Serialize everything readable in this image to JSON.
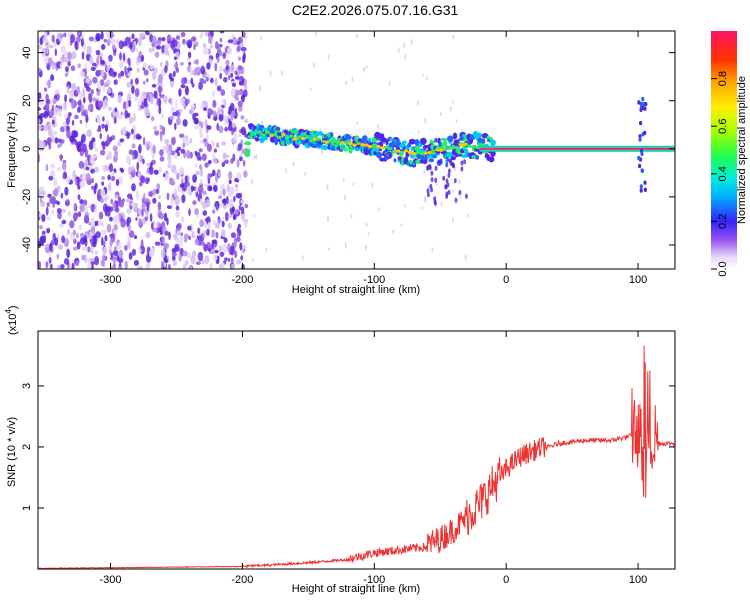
{
  "title": "C2E2.2026.075.07.16.G31",
  "chart_data": [
    {
      "type": "heatmap",
      "title": "C2E2.2026.075.07.16.G31",
      "xlabel": "Height of straight line (km)",
      "ylabel": "Frequency (Hz)",
      "xlim": [
        -355,
        128
      ],
      "ylim": [
        -50,
        49
      ],
      "xticks": [
        -300,
        -200,
        -100,
        0,
        100
      ],
      "yticks": [
        -40,
        -20,
        0,
        20,
        40
      ],
      "colorbar": {
        "label": "Normalized spectral amplitude",
        "range": [
          0,
          1
        ],
        "ticks": [
          0.0,
          0.2,
          0.4,
          0.6,
          0.8
        ],
        "tick_labels": [
          "0.0",
          "0.2",
          "0.4",
          "0.6",
          "0.8"
        ]
      },
      "features": [
        {
          "name": "noise",
          "x_range": [
            -355,
            -197
          ],
          "y_range": [
            -50,
            49
          ],
          "amplitude": 0.15
        },
        {
          "name": "signal_track",
          "points": [
            [
              -195,
              7
            ],
            [
              -150,
              4
            ],
            [
              -100,
              1
            ],
            [
              -70,
              -2
            ],
            [
              -50,
              -1
            ],
            [
              -30,
              2
            ],
            [
              -20,
              1
            ],
            [
              0,
              0
            ],
            [
              125,
              0
            ]
          ]
        }
      ]
    },
    {
      "type": "line",
      "xlabel": "Height of straight line (km)",
      "ylabel": "SNR (10 * v/v)",
      "y_multiplier": "(x10",
      "y_multiplier_exp": "4",
      "y_multiplier_close": ")",
      "xlim": [
        -355,
        128
      ],
      "ylim": [
        0,
        3.9
      ],
      "xticks": [
        -300,
        -200,
        -100,
        0,
        100
      ],
      "yticks": [
        1,
        2,
        3
      ],
      "color": "#ee3333",
      "series": [
        {
          "name": "SNR",
          "x": [
            -355,
            -300,
            -250,
            -200,
            -180,
            -150,
            -120,
            -100,
            -80,
            -60,
            -50,
            -40,
            -30,
            -20,
            -10,
            0,
            10,
            20,
            40,
            60,
            80,
            90,
            100,
            105,
            110,
            115,
            128
          ],
          "y": [
            0.01,
            0.02,
            0.03,
            0.04,
            0.06,
            0.1,
            0.15,
            0.25,
            0.3,
            0.35,
            0.45,
            0.6,
            0.8,
            1.0,
            1.3,
            1.6,
            1.8,
            1.9,
            2.05,
            2.1,
            2.1,
            2.15,
            2.2,
            1.5,
            2.0,
            2.05,
            2.05
          ]
        }
      ]
    }
  ]
}
